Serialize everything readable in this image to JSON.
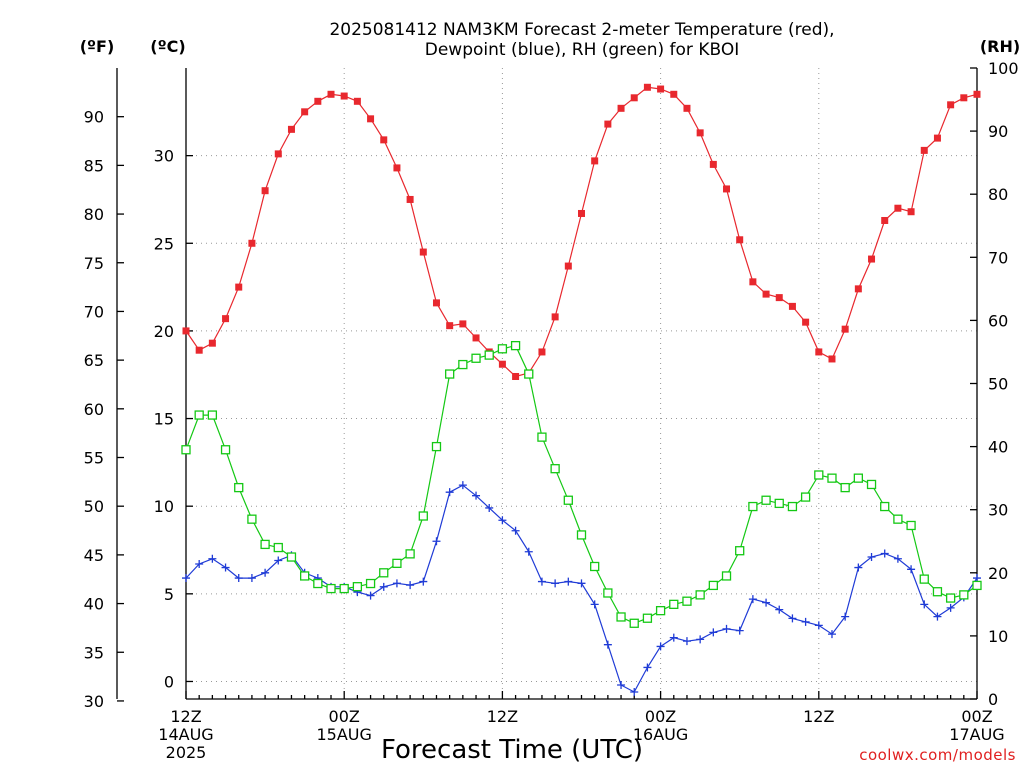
{
  "title_line1": "2025081412 NAM3KM Forecast 2-meter Temperature (red),",
  "title_line2": "Dewpoint (blue), RH (green) for KBOI",
  "unit_f": "(ºF)",
  "unit_c": "(ºC)",
  "unit_rh": "(RH)",
  "x_axis_title": "Forecast Time (UTC)",
  "credit": "coolwx.com/models",
  "x_labels": [
    {
      "line1": "12Z",
      "line2": "14AUG",
      "line3": "2025",
      "hour": 0
    },
    {
      "line1": "00Z",
      "line2": "15AUG",
      "line3": "",
      "hour": 12
    },
    {
      "line1": "12Z",
      "line2": "",
      "line3": "",
      "hour": 24
    },
    {
      "line1": "00Z",
      "line2": "16AUG",
      "line3": "",
      "hour": 36
    },
    {
      "line1": "12Z",
      "line2": "",
      "line3": "",
      "hour": 48
    },
    {
      "line1": "00Z",
      "line2": "17AUG",
      "line3": "",
      "hour": 60
    }
  ],
  "chart_data": {
    "type": "line",
    "title": "2025081412 NAM3KM Forecast 2-meter Temperature (red), Dewpoint (blue), RH (green) for KBOI",
    "xlabel": "Forecast Time (UTC)",
    "x_unit": "forecast hour",
    "xlim": [
      0,
      60
    ],
    "ylim_celsius": [
      -1,
      35
    ],
    "ylim_fahrenheit": [
      30.2,
      95
    ],
    "ylim_rh": [
      0,
      100
    ],
    "yticks_celsius": [
      0,
      5,
      10,
      15,
      20,
      25,
      30
    ],
    "yticks_fahrenheit": [
      30,
      35,
      40,
      45,
      50,
      55,
      60,
      65,
      70,
      75,
      80,
      85,
      90
    ],
    "yticks_rh": [
      0,
      10,
      20,
      30,
      40,
      50,
      60,
      70,
      80,
      90,
      100
    ],
    "grid": true,
    "series": [
      {
        "name": "2-meter Temperature",
        "axis": "celsius",
        "color": "#e8282e",
        "marker": "filled-square",
        "x": [
          0,
          1,
          2,
          3,
          4,
          5,
          6,
          7,
          8,
          9,
          10,
          11,
          12,
          13,
          14,
          15,
          16,
          17,
          18,
          19,
          20,
          21,
          22,
          23,
          24,
          25,
          26,
          27,
          28,
          29,
          30,
          31,
          32,
          33,
          34,
          35,
          36,
          37,
          38,
          39,
          40,
          41,
          42,
          43,
          44,
          45,
          46,
          47,
          48,
          49,
          50,
          51,
          52,
          53,
          54,
          55,
          56,
          57,
          58,
          59,
          60
        ],
        "values": [
          20.0,
          18.9,
          19.3,
          20.7,
          22.5,
          25.0,
          28.0,
          30.1,
          31.5,
          32.5,
          33.1,
          33.5,
          33.4,
          33.1,
          32.1,
          30.9,
          29.3,
          27.5,
          24.5,
          21.6,
          20.3,
          20.4,
          19.6,
          18.8,
          18.1,
          17.4,
          17.6,
          18.8,
          20.8,
          23.7,
          26.7,
          29.7,
          31.8,
          32.7,
          33.3,
          33.9,
          33.8,
          33.5,
          32.7,
          31.3,
          29.5,
          28.1,
          25.2,
          22.8,
          22.1,
          21.9,
          21.4,
          20.5,
          18.8,
          18.4,
          20.1,
          22.4,
          24.1,
          26.3,
          27.0,
          26.8,
          30.3,
          31.0,
          32.9,
          33.3,
          33.5
        ]
      },
      {
        "name": "Dewpoint",
        "axis": "celsius",
        "color": "#1f3bd6",
        "marker": "plus",
        "x": [
          0,
          1,
          2,
          3,
          4,
          5,
          6,
          7,
          8,
          9,
          10,
          11,
          12,
          13,
          14,
          15,
          16,
          17,
          18,
          19,
          20,
          21,
          22,
          23,
          24,
          25,
          26,
          27,
          28,
          29,
          30,
          31,
          32,
          33,
          34,
          35,
          36,
          37,
          38,
          39,
          40,
          41,
          42,
          43,
          44,
          45,
          46,
          47,
          48,
          49,
          50,
          51,
          52,
          53,
          54,
          55,
          56,
          57,
          58,
          59,
          60
        ],
        "values": [
          5.9,
          6.7,
          7.0,
          6.5,
          5.9,
          5.9,
          6.2,
          6.9,
          7.2,
          6.2,
          5.9,
          5.4,
          5.4,
          5.1,
          4.9,
          5.4,
          5.6,
          5.5,
          5.7,
          8.0,
          10.8,
          11.2,
          10.6,
          9.9,
          9.2,
          8.6,
          7.4,
          5.7,
          5.6,
          5.7,
          5.6,
          4.4,
          2.1,
          -0.2,
          -0.6,
          0.8,
          2.0,
          2.5,
          2.3,
          2.4,
          2.8,
          3.0,
          2.9,
          4.7,
          4.5,
          4.1,
          3.6,
          3.4,
          3.2,
          2.7,
          3.7,
          6.5,
          7.1,
          7.3,
          7.0,
          6.4,
          4.4,
          3.7,
          4.2,
          4.8,
          5.9
        ]
      },
      {
        "name": "RH",
        "axis": "rh",
        "color": "#14c814",
        "marker": "open-square",
        "x": [
          0,
          1,
          2,
          3,
          4,
          5,
          6,
          7,
          8,
          9,
          10,
          11,
          12,
          13,
          14,
          15,
          16,
          17,
          18,
          19,
          20,
          21,
          22,
          23,
          24,
          25,
          26,
          27,
          28,
          29,
          30,
          31,
          32,
          33,
          34,
          35,
          36,
          37,
          38,
          39,
          40,
          41,
          42,
          43,
          44,
          45,
          46,
          47,
          48,
          49,
          50,
          51,
          52,
          53,
          54,
          55,
          56,
          57,
          58,
          59,
          60
        ],
        "values": [
          39.5,
          45,
          45,
          39.5,
          33.5,
          28.5,
          24.5,
          24,
          22.5,
          19.5,
          18.3,
          17.5,
          17.5,
          17.8,
          18.3,
          20,
          21.5,
          23,
          29,
          40,
          51.5,
          53,
          54,
          54.5,
          55.5,
          56,
          51.5,
          41.5,
          36.5,
          31.5,
          26,
          21,
          16.8,
          13,
          12,
          12.8,
          14,
          15,
          15.5,
          16.5,
          18,
          19.5,
          23.5,
          30.5,
          31.5,
          31,
          30.5,
          32,
          35.5,
          35,
          33.5,
          35,
          34,
          30.5,
          28.5,
          27.5,
          19,
          17,
          16,
          16.5,
          18
        ]
      }
    ]
  }
}
